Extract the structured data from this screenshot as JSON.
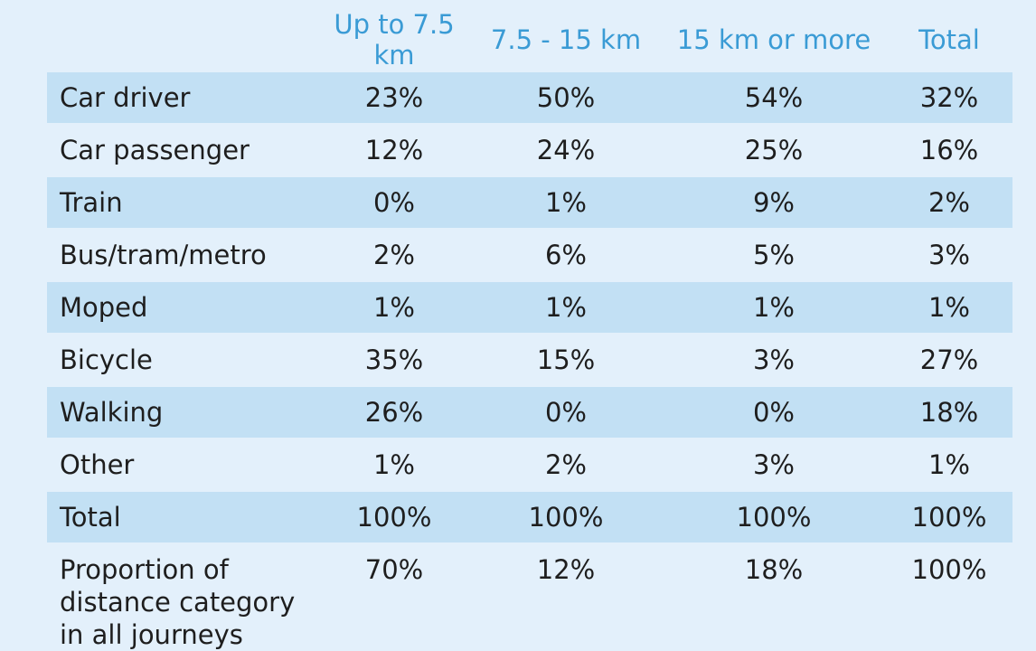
{
  "chart_data": {
    "type": "table",
    "columns": [
      "Up to 7.5 km",
      "7.5 - 15 km",
      "15 km or more",
      "Total"
    ],
    "rows": [
      {
        "label": "Car driver",
        "values": [
          "23%",
          "50%",
          "54%",
          "32%"
        ],
        "shaded": true
      },
      {
        "label": "Car passenger",
        "values": [
          "12%",
          "24%",
          "25%",
          "16%"
        ],
        "shaded": false
      },
      {
        "label": "Train",
        "values": [
          "0%",
          "1%",
          "9%",
          "2%"
        ],
        "shaded": true
      },
      {
        "label": "Bus/tram/metro",
        "values": [
          "2%",
          "6%",
          "5%",
          "3%"
        ],
        "shaded": false
      },
      {
        "label": "Moped",
        "values": [
          "1%",
          "1%",
          "1%",
          "1%"
        ],
        "shaded": true
      },
      {
        "label": "Bicycle",
        "values": [
          "35%",
          "15%",
          "3%",
          "27%"
        ],
        "shaded": false
      },
      {
        "label": "Walking",
        "values": [
          "26%",
          "0%",
          "0%",
          "18%"
        ],
        "shaded": true
      },
      {
        "label": "Other",
        "values": [
          "1%",
          "2%",
          "3%",
          "1%"
        ],
        "shaded": false
      },
      {
        "label": "Total",
        "values": [
          "100%",
          "100%",
          "100%",
          "100%"
        ],
        "shaded": true
      },
      {
        "label": "Proportion of distance category in all journeys",
        "label_lines": [
          "Proportion of",
          "distance category",
          "in all journeys"
        ],
        "values": [
          "70%",
          "12%",
          "18%",
          "100%"
        ],
        "shaded": false
      }
    ]
  },
  "colors": {
    "background": "#e3f0fb",
    "shaded_row": "#c2e0f4",
    "header_text": "#3a9bd5",
    "body_text": "#1e1e1e"
  }
}
